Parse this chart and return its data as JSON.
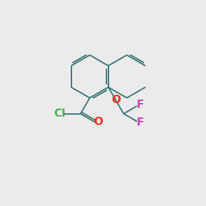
{
  "bg_color": "#ebebeb",
  "bond_color": "#3d7575",
  "bond_width": 1.4,
  "cl_color": "#4caf50",
  "o_color": "#f03020",
  "f_color": "#cc44bb",
  "font_size": 11.5,
  "figsize": [
    3.0,
    3.0
  ],
  "dpi": 100,
  "xlim": [
    0,
    10
  ],
  "ylim": [
    0,
    10
  ]
}
